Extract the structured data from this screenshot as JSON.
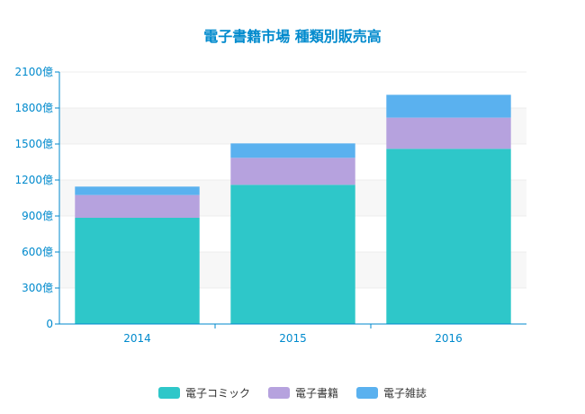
{
  "chart_data": {
    "type": "bar",
    "stacked": true,
    "title": "電子書籍市場 種類別販売高",
    "categories": [
      "2014",
      "2015",
      "2016"
    ],
    "series": [
      {
        "name": "電子コミック",
        "color": "#2ec7c9",
        "values": [
          885,
          1160,
          1460
        ]
      },
      {
        "name": "電子書籍",
        "color": "#b6a2de",
        "values": [
          190,
          225,
          260
        ]
      },
      {
        "name": "電子雑誌",
        "color": "#5ab1ef",
        "values": [
          70,
          120,
          190
        ]
      }
    ],
    "ylim": [
      0,
      2100
    ],
    "yticks": [
      {
        "value": 0,
        "label": "0"
      },
      {
        "value": 300,
        "label": "300億"
      },
      {
        "value": 600,
        "label": "600億"
      },
      {
        "value": 900,
        "label": "900億"
      },
      {
        "value": 1200,
        "label": "1200億"
      },
      {
        "value": 1500,
        "label": "1500億"
      },
      {
        "value": 1800,
        "label": "1800億"
      },
      {
        "value": 2100,
        "label": "2100億"
      }
    ],
    "grid": true,
    "legend_position": "bottom-center"
  },
  "colors": {
    "axis": "#008acd",
    "title": "#008acd",
    "gridline": "#eeeeee",
    "band": "#f7f7f7"
  }
}
